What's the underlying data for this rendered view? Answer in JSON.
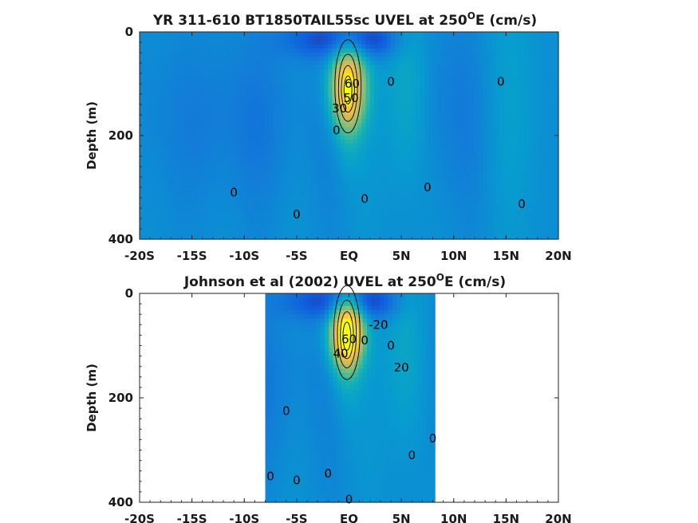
{
  "chart_data": [
    {
      "type": "heatmap",
      "title": "YR 311-610 BT1850TAIL55sc UVEL at 250",
      "title_sup": "O",
      "title_tail": "E (cm/s)",
      "ylabel": "Depth (m)",
      "xlim": [
        -20,
        20
      ],
      "ylim": [
        0,
        400
      ],
      "x_ticks": [
        -20,
        -15,
        -10,
        -5,
        0,
        5,
        10,
        15,
        20
      ],
      "x_tick_labels": [
        "-20S",
        "-15S",
        "-10S",
        "-5S",
        "EQ",
        "5N",
        "10N",
        "15N",
        "20N"
      ],
      "y_ticks": [
        0,
        200,
        400
      ],
      "y_tick_labels": [
        "0",
        "200",
        "400"
      ],
      "data_lon_range": [
        -20,
        20
      ],
      "colormap": "parula",
      "jet": {
        "lat": -0.1,
        "depth": 105,
        "max": 70
      },
      "contour_labels": [
        {
          "text": "0",
          "lat": -11,
          "depth": 310
        },
        {
          "text": "0",
          "lat": -5,
          "depth": 352
        },
        {
          "text": "0",
          "lat": -1.2,
          "depth": 190
        },
        {
          "text": "0",
          "lat": 1.5,
          "depth": 322
        },
        {
          "text": "0",
          "lat": 4,
          "depth": 96
        },
        {
          "text": "0",
          "lat": 7.5,
          "depth": 300
        },
        {
          "text": "0",
          "lat": 14.5,
          "depth": 96
        },
        {
          "text": "0",
          "lat": 16.5,
          "depth": 332
        },
        {
          "text": "30",
          "lat": -0.9,
          "depth": 148
        },
        {
          "text": "50",
          "lat": 0.2,
          "depth": 128
        },
        {
          "text": "60",
          "lat": 0.3,
          "depth": 100
        }
      ]
    },
    {
      "type": "heatmap",
      "title": "Johnson et al (2002) UVEL at 250",
      "title_sup": "O",
      "title_tail": "E (cm/s)",
      "ylabel": "Depth (m)",
      "xlim": [
        -20,
        20
      ],
      "ylim": [
        0,
        400
      ],
      "x_ticks": [
        -20,
        -15,
        -10,
        -5,
        0,
        5,
        10,
        15,
        20
      ],
      "x_tick_labels": [
        "-20S",
        "-15S",
        "-10S",
        "-5S",
        "EQ",
        "5N",
        "10N",
        "15N",
        "20N"
      ],
      "y_ticks": [
        0,
        200,
        400
      ],
      "y_tick_labels": [
        "0",
        "200",
        "400"
      ],
      "data_lon_range": [
        -8,
        8.2
      ],
      "colormap": "parula",
      "jet": {
        "lat": -0.2,
        "depth": 75,
        "max": 90
      },
      "contour_labels": [
        {
          "text": "0",
          "lat": -6,
          "depth": 225
        },
        {
          "text": "0",
          "lat": -7.5,
          "depth": 350
        },
        {
          "text": "0",
          "lat": -5,
          "depth": 358
        },
        {
          "text": "0",
          "lat": -2,
          "depth": 345
        },
        {
          "text": "0",
          "lat": 0,
          "depth": 395
        },
        {
          "text": "0",
          "lat": 1.5,
          "depth": 90
        },
        {
          "text": "0",
          "lat": 4,
          "depth": 100
        },
        {
          "text": "0",
          "lat": 6,
          "depth": 310
        },
        {
          "text": "0",
          "lat": 8,
          "depth": 278
        },
        {
          "text": "-20",
          "lat": 2.8,
          "depth": 60
        },
        {
          "text": "20",
          "lat": 5,
          "depth": 142
        },
        {
          "text": "40",
          "lat": -0.8,
          "depth": 115
        },
        {
          "text": "60",
          "lat": 0,
          "depth": 88
        }
      ]
    }
  ]
}
